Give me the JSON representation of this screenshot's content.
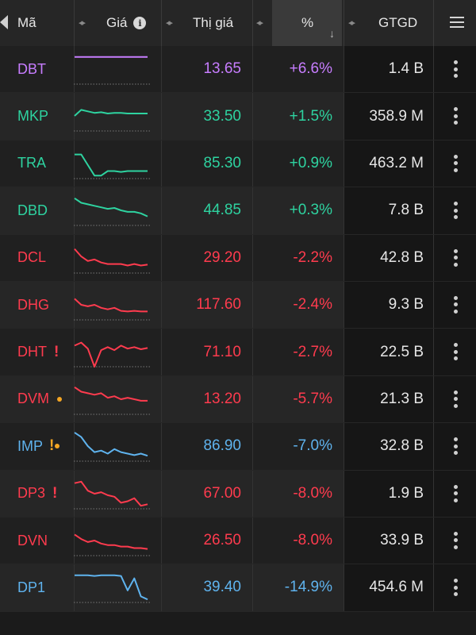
{
  "header": {
    "col_symbol": "Mã",
    "col_chart": "Giá",
    "col_price": "Thị giá",
    "col_change": "%",
    "col_volume": "GTGD"
  },
  "colors": {
    "purple": "#c77dff",
    "green": "#2ed3a0",
    "red": "#ff3b4e",
    "blue": "#5fb3ee",
    "warning": "#f5a623"
  },
  "rows": [
    {
      "symbol": "DBT",
      "price": "13.65",
      "change": "+6.6%",
      "volume": "1.4 B",
      "color": "purple",
      "flag": "",
      "spark": [
        0.1,
        0.1,
        0.1,
        0.1,
        0.1,
        0.1,
        0.1,
        0.1,
        0.1,
        0.1,
        0.1,
        0.1
      ]
    },
    {
      "symbol": "MKP",
      "price": "33.50",
      "change": "+1.5%",
      "volume": "358.9 M",
      "color": "green",
      "flag": "",
      "spark": [
        0.5,
        0.3,
        0.35,
        0.4,
        0.38,
        0.42,
        0.4,
        0.4,
        0.42,
        0.42,
        0.42,
        0.42
      ]
    },
    {
      "symbol": "TRA",
      "price": "85.30",
      "change": "+0.9%",
      "volume": "463.2 M",
      "color": "green",
      "flag": "",
      "spark": [
        0.2,
        0.2,
        0.55,
        0.9,
        0.9,
        0.75,
        0.75,
        0.78,
        0.75,
        0.75,
        0.75,
        0.75
      ]
    },
    {
      "symbol": "DBD",
      "price": "44.85",
      "change": "+0.3%",
      "volume": "7.8 B",
      "color": "green",
      "flag": "",
      "spark": [
        0.1,
        0.25,
        0.3,
        0.35,
        0.4,
        0.45,
        0.42,
        0.5,
        0.55,
        0.55,
        0.6,
        0.7
      ]
    },
    {
      "symbol": "DCL",
      "price": "29.20",
      "change": "-2.2%",
      "volume": "42.8 B",
      "color": "red",
      "flag": "",
      "spark": [
        0.2,
        0.45,
        0.6,
        0.55,
        0.65,
        0.7,
        0.7,
        0.7,
        0.75,
        0.7,
        0.75,
        0.72
      ]
    },
    {
      "symbol": "DHG",
      "price": "117.60",
      "change": "-2.4%",
      "volume": "9.3 B",
      "color": "red",
      "flag": "",
      "spark": [
        0.3,
        0.5,
        0.55,
        0.5,
        0.6,
        0.65,
        0.6,
        0.7,
        0.72,
        0.7,
        0.72,
        0.72
      ]
    },
    {
      "symbol": "DHT",
      "price": "71.10",
      "change": "-2.7%",
      "volume": "22.5 B",
      "color": "red",
      "flag": "excl",
      "spark": [
        0.3,
        0.2,
        0.4,
        1.0,
        0.45,
        0.35,
        0.45,
        0.3,
        0.4,
        0.35,
        0.42,
        0.38
      ]
    },
    {
      "symbol": "DVM",
      "price": "13.20",
      "change": "-5.7%",
      "volume": "21.3 B",
      "color": "red",
      "flag": "dot",
      "spark": [
        0.1,
        0.25,
        0.3,
        0.35,
        0.3,
        0.45,
        0.4,
        0.5,
        0.45,
        0.5,
        0.55,
        0.55
      ]
    },
    {
      "symbol": "IMP",
      "price": "86.90",
      "change": "-7.0%",
      "volume": "32.8 B",
      "color": "blue",
      "flag": "excl-dot",
      "spark": [
        0.05,
        0.2,
        0.5,
        0.7,
        0.65,
        0.75,
        0.6,
        0.7,
        0.75,
        0.8,
        0.75,
        0.82
      ]
    },
    {
      "symbol": "DP3",
      "price": "67.00",
      "change": "-8.0%",
      "volume": "1.9 B",
      "color": "red",
      "flag": "excl",
      "spark": [
        0.15,
        0.1,
        0.4,
        0.5,
        0.45,
        0.55,
        0.6,
        0.8,
        0.75,
        0.65,
        0.9,
        0.85
      ]
    },
    {
      "symbol": "DVN",
      "price": "26.50",
      "change": "-8.0%",
      "volume": "33.9 B",
      "color": "red",
      "flag": "",
      "spark": [
        0.3,
        0.45,
        0.55,
        0.5,
        0.6,
        0.65,
        0.65,
        0.7,
        0.7,
        0.75,
        0.75,
        0.78
      ]
    },
    {
      "symbol": "DP1",
      "price": "39.40",
      "change": "-14.9%",
      "volume": "454.6 M",
      "color": "blue",
      "flag": "",
      "spark": [
        0.1,
        0.1,
        0.1,
        0.12,
        0.1,
        0.1,
        0.1,
        0.12,
        0.6,
        0.2,
        0.8,
        0.9
      ]
    }
  ]
}
